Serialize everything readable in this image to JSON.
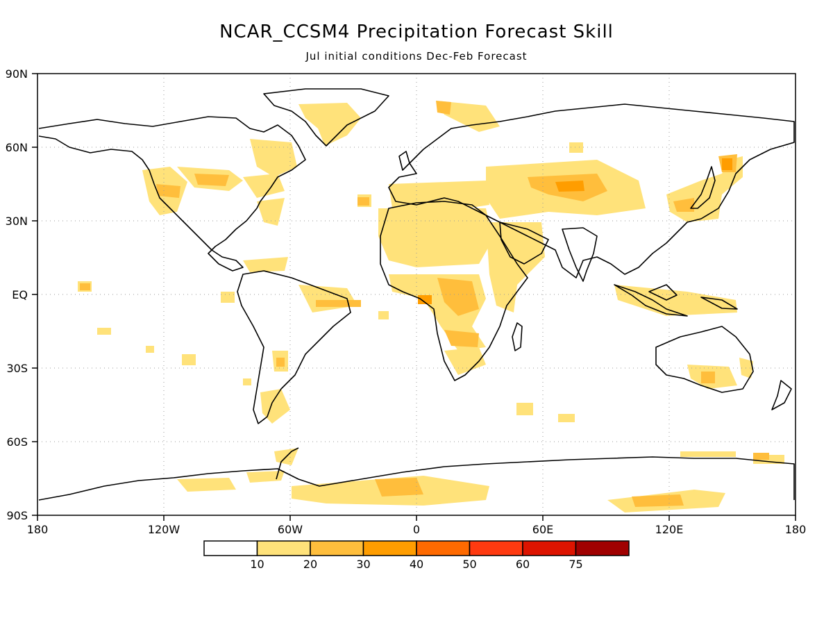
{
  "title": "NCAR_CCSM4 Precipitation Forecast Skill",
  "subtitle": "Jul initial conditions  Dec-Feb Forecast",
  "lat_ticks": [
    "90N",
    "60N",
    "30N",
    "EQ",
    "30S",
    "60S",
    "90S"
  ],
  "lon_ticks": [
    "180",
    "120W",
    "60W",
    "0",
    "60E",
    "120E",
    "180"
  ],
  "colorbar": {
    "colors": [
      "#ffffff",
      "#ffe27a",
      "#ffbe3c",
      "#ff9d00",
      "#ff6a00",
      "#ff3a10",
      "#dd1400",
      "#a00000"
    ],
    "labels": [
      "10",
      "20",
      "30",
      "40",
      "50",
      "60",
      "75"
    ]
  }
}
